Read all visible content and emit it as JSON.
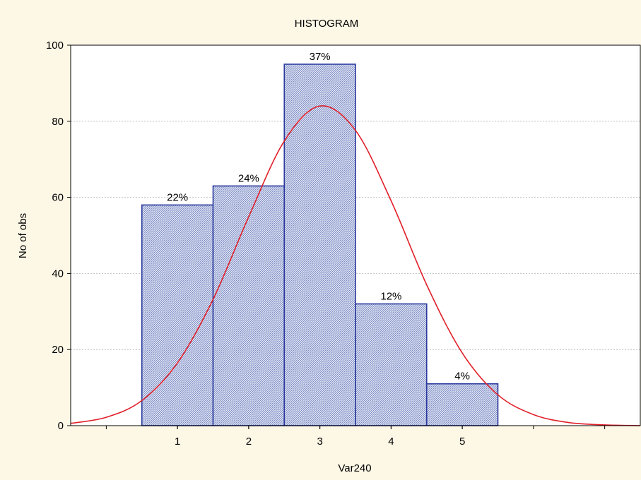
{
  "chart_data": {
    "type": "bar",
    "title": "HISTOGRAM",
    "xlabel": "Var240",
    "ylabel": "No of obs",
    "categories": [
      "1",
      "2",
      "3",
      "4",
      "5"
    ],
    "values": [
      58,
      63,
      95,
      32,
      11
    ],
    "bar_labels": [
      "22%",
      "24%",
      "37%",
      "12%",
      "4%"
    ],
    "ylim": [
      0,
      100
    ],
    "xlim": [
      -0.5,
      7.5
    ],
    "yticks": [
      "0",
      "20",
      "40",
      "60",
      "80",
      "100"
    ],
    "grid": true,
    "overlay": {
      "type": "line",
      "shape": "normal-curve",
      "x": [
        -0.5,
        0,
        0.5,
        1,
        1.5,
        2,
        2.5,
        3,
        3.5,
        4,
        4.5,
        5,
        5.5,
        6,
        6.5,
        7,
        7.5
      ],
      "y": [
        0.6,
        2.2,
        6.6,
        16.5,
        33.2,
        54.9,
        74.8,
        84,
        77.6,
        59.1,
        37,
        19.1,
        8.1,
        2.9,
        0.8,
        0.2,
        0
      ]
    },
    "colors": {
      "bar_fill": "#c9d1e8",
      "bar_stroke": "#2b3a9e",
      "curve": "#e0202a",
      "background": "#fdf8e6",
      "plot_background": "#ffffff"
    }
  }
}
